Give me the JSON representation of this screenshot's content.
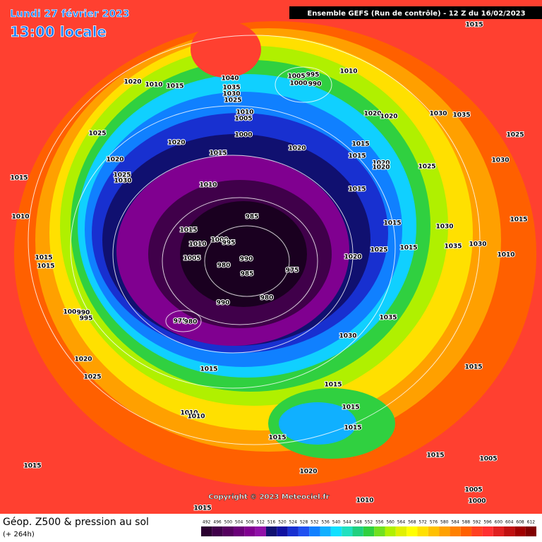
{
  "header": {
    "date": "Lundi 27 février 2023",
    "time": "13:00 locale",
    "run": "Ensemble GEFS  (Run de contrôle)  -  12 Z du 16/02/2023"
  },
  "copyright": "Copyright © 2023 Meteociel.fr",
  "footer": {
    "title": "Géop. Z500 & pression au sol",
    "lead": "(+ 264h)"
  },
  "scale": {
    "values": [
      492,
      496,
      500,
      504,
      508,
      512,
      516,
      520,
      524,
      528,
      532,
      536,
      540,
      544,
      548,
      552,
      556,
      560,
      564,
      568,
      572,
      576,
      580,
      584,
      588,
      592,
      596,
      600,
      604,
      608,
      612
    ],
    "colors": [
      "#2a0030",
      "#40004a",
      "#55005f",
      "#6a0078",
      "#800090",
      "#9010a8",
      "#101070",
      "#1010a0",
      "#1830d0",
      "#2050f0",
      "#1080ff",
      "#10b0ff",
      "#10e0ff",
      "#20e0c0",
      "#20d080",
      "#30d040",
      "#70e020",
      "#b0f000",
      "#e0f000",
      "#ffff00",
      "#ffe000",
      "#ffc000",
      "#ffa000",
      "#ff8000",
      "#ff6000",
      "#ff4020",
      "#ff3030",
      "#e02020",
      "#c01010",
      "#a00000",
      "#800000"
    ]
  },
  "isobar_labels": [
    "1015",
    "1020",
    "1010",
    "1015",
    "1040",
    "1035",
    "1030",
    "1025",
    "1005",
    "995",
    "1000",
    "990",
    "1010",
    "1010",
    "1005",
    "1000",
    "1025",
    "1020",
    "1015",
    "1020",
    "1015",
    "1015",
    "1020",
    "1020",
    "1030",
    "1035",
    "1025",
    "1020",
    "1025",
    "1030",
    "1015",
    "1010",
    "1020",
    "1020",
    "1025",
    "1030",
    "1015",
    "985",
    "1015",
    "1015",
    "1030",
    "1015",
    "1010",
    "1000",
    "995",
    "1010",
    "1025",
    "1015",
    "1035",
    "1030",
    "1020",
    "1010",
    "1005",
    "990",
    "980",
    "975",
    "985",
    "1015",
    "1015",
    "980",
    "990",
    "1005",
    "990",
    "995",
    "975",
    "980",
    "1035",
    "1030",
    "1020",
    "1015",
    "1015",
    "1025",
    "1015",
    "1015",
    "1015",
    "1010",
    "1010",
    "1015",
    "1015",
    "1005",
    "1020",
    "1015",
    "1005",
    "1000",
    "1010",
    "1015"
  ]
}
